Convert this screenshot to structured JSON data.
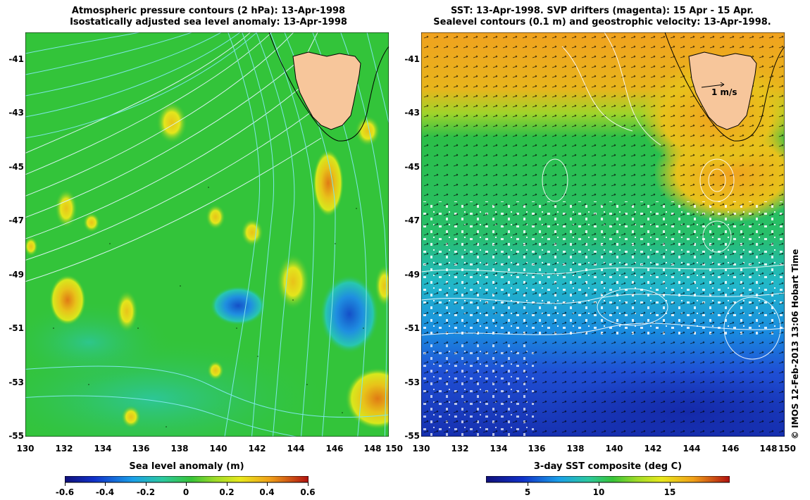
{
  "left_panel": {
    "title_line1": "Atmospheric pressure contours (2 hPa): 13-Apr-1998",
    "title_line2": "Isostatically adjusted sea level anomaly: 13-Apr-1998",
    "lat_ticks": [
      "-41",
      "-43",
      "-45",
      "-47",
      "-49",
      "-51",
      "-53",
      "-55"
    ],
    "lon_ticks": [
      "130",
      "132",
      "134",
      "136",
      "138",
      "140",
      "142",
      "144",
      "146",
      "148",
      "150"
    ],
    "colorbar": {
      "label": "Sea level anomaly (m)",
      "ticks": [
        "-0.6",
        "-0.4",
        "-0.2",
        "0",
        "0.2",
        "0.4",
        "0.6"
      ]
    }
  },
  "right_panel": {
    "title_line1": "SST: 13-Apr-1998. SVP drifters (magenta): 15 Apr - 15 Apr.",
    "title_line2": "Sealevel contours (0.1 m) and geostrophic velocity: 13-Apr-1998.",
    "lat_ticks": [
      "-41",
      "-43",
      "-45",
      "-47",
      "-49",
      "-51",
      "-53",
      "-55"
    ],
    "lon_ticks": [
      "130",
      "132",
      "134",
      "136",
      "138",
      "140",
      "142",
      "144",
      "146",
      "148",
      "150"
    ],
    "velocity_scale_label": "1 m/s",
    "colorbar": {
      "label": "3-day SST composite (deg C)",
      "ticks": [
        "5",
        "10",
        "15"
      ]
    }
  },
  "credit": "© IMOS 12-Feb-2013 13:06 Hobart Time",
  "colors": {
    "land": "#f7c69b",
    "sla_green": "#33c43a",
    "sla_yellow": "#e8e81c",
    "sla_blue": "#1a7fd6",
    "sst_orange": "#f0a21f",
    "sst_green": "#2bbf48",
    "sst_blue": "#1f3fd0"
  }
}
